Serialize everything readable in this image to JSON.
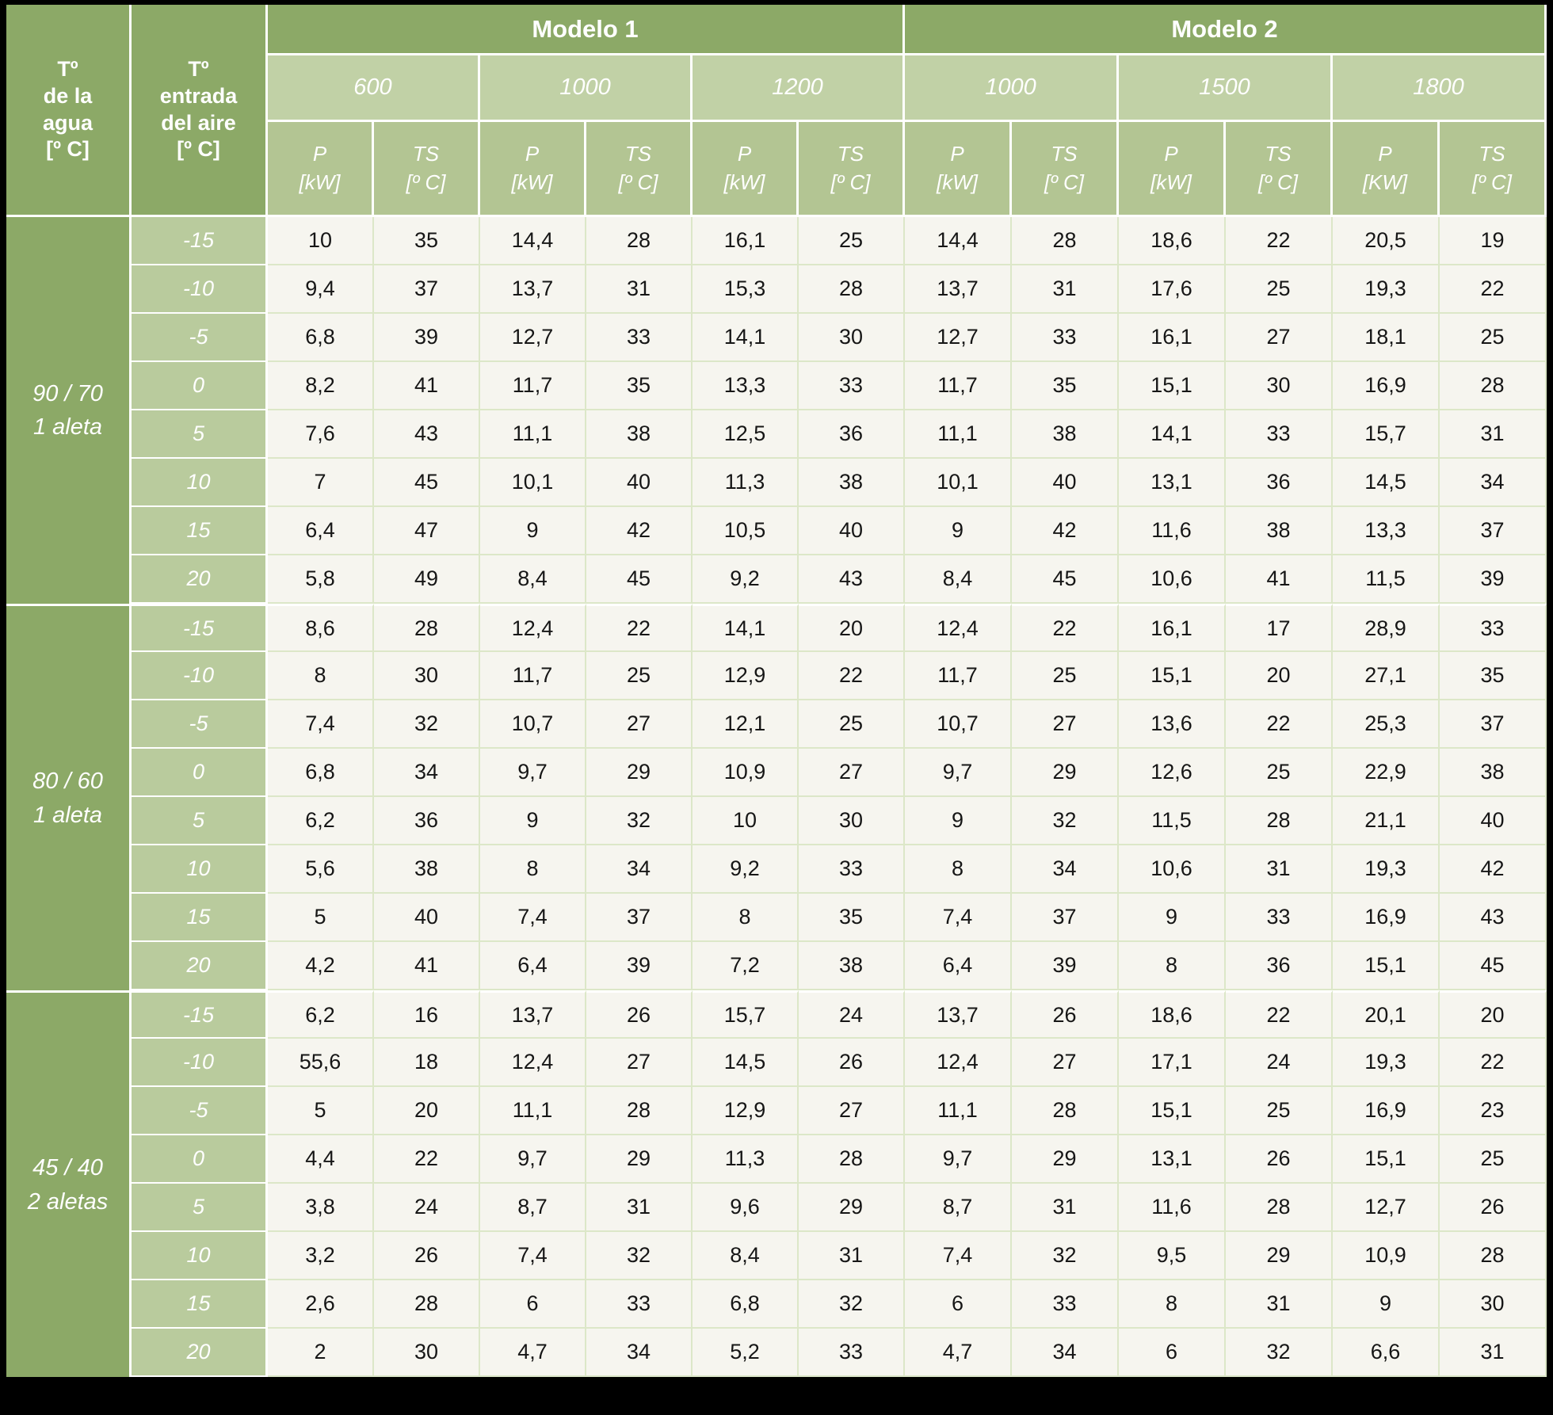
{
  "header": {
    "water_temp_lines": [
      "Tº",
      "de la",
      "agua",
      "[º C]"
    ],
    "air_temp_lines": [
      "Tº",
      "entrada",
      "del aire",
      "[º C]"
    ],
    "models": [
      {
        "label": "Modelo 1"
      },
      {
        "label": "Modelo 2"
      }
    ],
    "sizes": [
      "600",
      "1000",
      "1200",
      "1000",
      "1500",
      "1800"
    ],
    "measure_cols": [
      {
        "name": "P",
        "unit": "[kW]"
      },
      {
        "name": "TS",
        "unit": "[º C]"
      },
      {
        "name": "P",
        "unit": "[kW]"
      },
      {
        "name": "TS",
        "unit": "[º C]"
      },
      {
        "name": "P",
        "unit": "[kW]"
      },
      {
        "name": "TS",
        "unit": "[º C]"
      },
      {
        "name": "P",
        "unit": "[kW]"
      },
      {
        "name": "TS",
        "unit": "[º C]"
      },
      {
        "name": "P",
        "unit": "[kW]"
      },
      {
        "name": "TS",
        "unit": "[º C]"
      },
      {
        "name": "P",
        "unit": "[KW]"
      },
      {
        "name": "TS",
        "unit": "[º C]"
      }
    ]
  },
  "body": {
    "groups": [
      {
        "label_line1": "90 / 70",
        "label_line2": "1 aleta",
        "rows": [
          {
            "air_temp": "-15",
            "values": [
              "10",
              "35",
              "14,4",
              "28",
              "16,1",
              "25",
              "14,4",
              "28",
              "18,6",
              "22",
              "20,5",
              "19"
            ]
          },
          {
            "air_temp": "-10",
            "values": [
              "9,4",
              "37",
              "13,7",
              "31",
              "15,3",
              "28",
              "13,7",
              "31",
              "17,6",
              "25",
              "19,3",
              "22"
            ]
          },
          {
            "air_temp": "-5",
            "values": [
              "6,8",
              "39",
              "12,7",
              "33",
              "14,1",
              "30",
              "12,7",
              "33",
              "16,1",
              "27",
              "18,1",
              "25"
            ]
          },
          {
            "air_temp": "0",
            "values": [
              "8,2",
              "41",
              "11,7",
              "35",
              "13,3",
              "33",
              "11,7",
              "35",
              "15,1",
              "30",
              "16,9",
              "28"
            ]
          },
          {
            "air_temp": "5",
            "values": [
              "7,6",
              "43",
              "11,1",
              "38",
              "12,5",
              "36",
              "11,1",
              "38",
              "14,1",
              "33",
              "15,7",
              "31"
            ]
          },
          {
            "air_temp": "10",
            "values": [
              "7",
              "45",
              "10,1",
              "40",
              "11,3",
              "38",
              "10,1",
              "40",
              "13,1",
              "36",
              "14,5",
              "34"
            ]
          },
          {
            "air_temp": "15",
            "values": [
              "6,4",
              "47",
              "9",
              "42",
              "10,5",
              "40",
              "9",
              "42",
              "11,6",
              "38",
              "13,3",
              "37"
            ]
          },
          {
            "air_temp": "20",
            "values": [
              "5,8",
              "49",
              "8,4",
              "45",
              "9,2",
              "43",
              "8,4",
              "45",
              "10,6",
              "41",
              "11,5",
              "39"
            ]
          }
        ]
      },
      {
        "label_line1": "80 / 60",
        "label_line2": "1 aleta",
        "rows": [
          {
            "air_temp": "-15",
            "values": [
              "8,6",
              "28",
              "12,4",
              "22",
              "14,1",
              "20",
              "12,4",
              "22",
              "16,1",
              "17",
              "28,9",
              "33"
            ]
          },
          {
            "air_temp": "-10",
            "values": [
              "8",
              "30",
              "11,7",
              "25",
              "12,9",
              "22",
              "11,7",
              "25",
              "15,1",
              "20",
              "27,1",
              "35"
            ]
          },
          {
            "air_temp": "-5",
            "values": [
              "7,4",
              "32",
              "10,7",
              "27",
              "12,1",
              "25",
              "10,7",
              "27",
              "13,6",
              "22",
              "25,3",
              "37"
            ]
          },
          {
            "air_temp": "0",
            "values": [
              "6,8",
              "34",
              "9,7",
              "29",
              "10,9",
              "27",
              "9,7",
              "29",
              "12,6",
              "25",
              "22,9",
              "38"
            ]
          },
          {
            "air_temp": "5",
            "values": [
              "6,2",
              "36",
              "9",
              "32",
              "10",
              "30",
              "9",
              "32",
              "11,5",
              "28",
              "21,1",
              "40"
            ]
          },
          {
            "air_temp": "10",
            "values": [
              "5,6",
              "38",
              "8",
              "34",
              "9,2",
              "33",
              "8",
              "34",
              "10,6",
              "31",
              "19,3",
              "42"
            ]
          },
          {
            "air_temp": "15",
            "values": [
              "5",
              "40",
              "7,4",
              "37",
              "8",
              "35",
              "7,4",
              "37",
              "9",
              "33",
              "16,9",
              "43"
            ]
          },
          {
            "air_temp": "20",
            "values": [
              "4,2",
              "41",
              "6,4",
              "39",
              "7,2",
              "38",
              "6,4",
              "39",
              "8",
              "36",
              "15,1",
              "45"
            ]
          }
        ]
      },
      {
        "label_line1": "45 / 40",
        "label_line2": "2 aletas",
        "rows": [
          {
            "air_temp": "-15",
            "values": [
              "6,2",
              "16",
              "13,7",
              "26",
              "15,7",
              "24",
              "13,7",
              "26",
              "18,6",
              "22",
              "20,1",
              "20"
            ]
          },
          {
            "air_temp": "-10",
            "values": [
              "55,6",
              "18",
              "12,4",
              "27",
              "14,5",
              "26",
              "12,4",
              "27",
              "17,1",
              "24",
              "19,3",
              "22"
            ]
          },
          {
            "air_temp": "-5",
            "values": [
              "5",
              "20",
              "11,1",
              "28",
              "12,9",
              "27",
              "11,1",
              "28",
              "15,1",
              "25",
              "16,9",
              "23"
            ]
          },
          {
            "air_temp": "0",
            "values": [
              "4,4",
              "22",
              "9,7",
              "29",
              "11,3",
              "28",
              "9,7",
              "29",
              "13,1",
              "26",
              "15,1",
              "25"
            ]
          },
          {
            "air_temp": "5",
            "values": [
              "3,8",
              "24",
              "8,7",
              "31",
              "9,6",
              "29",
              "8,7",
              "31",
              "11,6",
              "28",
              "12,7",
              "26"
            ]
          },
          {
            "air_temp": "10",
            "values": [
              "3,2",
              "26",
              "7,4",
              "32",
              "8,4",
              "31",
              "7,4",
              "32",
              "9,5",
              "29",
              "10,9",
              "28"
            ]
          },
          {
            "air_temp": "15",
            "values": [
              "2,6",
              "28",
              "6",
              "33",
              "6,8",
              "32",
              "6",
              "33",
              "8",
              "31",
              "9",
              "30"
            ]
          },
          {
            "air_temp": "20",
            "values": [
              "2",
              "30",
              "4,7",
              "34",
              "5,2",
              "33",
              "4,7",
              "34",
              "6",
              "32",
              "6,6",
              "31"
            ]
          }
        ]
      }
    ]
  },
  "colors": {
    "header_green": "#8CA967",
    "size_row_green": "#C1D1A6",
    "measure_row_green": "#B3C593",
    "airtemp_green": "#B9CB9D",
    "data_bg": "#F6F5EF",
    "grid_green": "#DCE7C8",
    "separator_white": "#FFFFFF",
    "page_bg": "#000000"
  }
}
